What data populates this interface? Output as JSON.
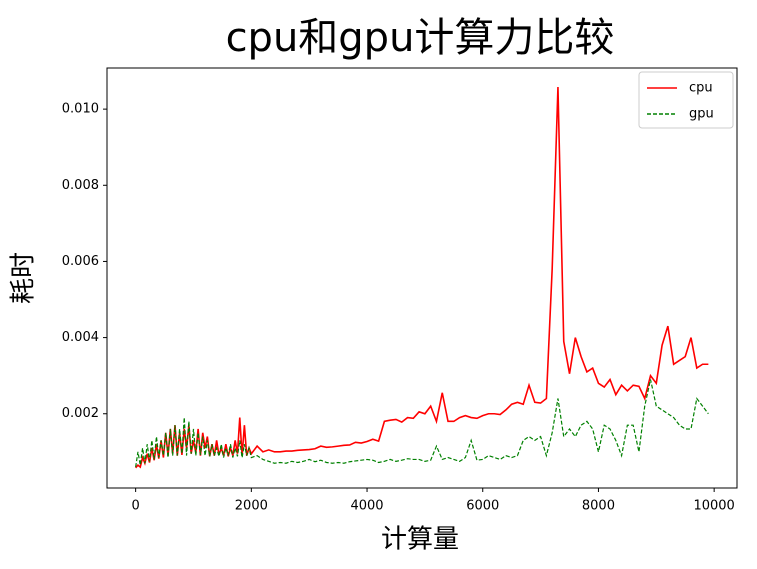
{
  "chart_data": {
    "type": "line",
    "title": "cpu和gpu计算力比较",
    "xlabel": "计算量",
    "ylabel": "耗时",
    "x": [
      0,
      40,
      80,
      120,
      160,
      200,
      240,
      280,
      320,
      360,
      400,
      440,
      480,
      520,
      560,
      600,
      640,
      680,
      720,
      760,
      800,
      840,
      880,
      920,
      960,
      1000,
      1040,
      1080,
      1120,
      1160,
      1200,
      1240,
      1280,
      1320,
      1360,
      1400,
      1440,
      1480,
      1520,
      1560,
      1600,
      1640,
      1680,
      1720,
      1760,
      1800,
      1840,
      1880,
      1920,
      1960,
      2000,
      2100,
      2200,
      2300,
      2400,
      2500,
      2600,
      2700,
      2800,
      2900,
      3000,
      3100,
      3200,
      3300,
      3400,
      3500,
      3600,
      3700,
      3800,
      3900,
      4000,
      4100,
      4200,
      4300,
      4400,
      4500,
      4600,
      4700,
      4800,
      4900,
      5000,
      5100,
      5200,
      5300,
      5400,
      5500,
      5600,
      5700,
      5800,
      5900,
      6000,
      6100,
      6200,
      6300,
      6400,
      6500,
      6600,
      6700,
      6800,
      6900,
      7000,
      7100,
      7200,
      7300,
      7400,
      7500,
      7600,
      7700,
      7800,
      7900,
      8000,
      8100,
      8200,
      8300,
      8400,
      8500,
      8600,
      8700,
      8800,
      8900,
      9000,
      9100,
      9200,
      9300,
      9400,
      9500,
      9600,
      9700,
      9800,
      9900
    ],
    "series": [
      {
        "name": "cpu",
        "color": "#ff0000",
        "linestyle": "solid",
        "values": [
          0.00058,
          0.00065,
          0.0006,
          0.00085,
          0.0007,
          0.00095,
          0.00072,
          0.0011,
          0.00078,
          0.0012,
          0.00082,
          0.0013,
          0.00085,
          0.0015,
          0.0009,
          0.0016,
          0.00095,
          0.0017,
          0.0009,
          0.0015,
          0.00092,
          0.0016,
          0.0011,
          0.0017,
          0.00095,
          0.0013,
          0.00098,
          0.0016,
          0.0009,
          0.0015,
          0.0011,
          0.0014,
          0.00088,
          0.0012,
          0.0009,
          0.0013,
          0.00092,
          0.0011,
          0.0009,
          0.0012,
          0.00088,
          0.0011,
          0.0009,
          0.0013,
          0.00095,
          0.0019,
          0.0009,
          0.0017,
          0.0009,
          0.0011,
          0.00095,
          0.00115,
          0.001,
          0.00105,
          0.001,
          0.001,
          0.00102,
          0.00102,
          0.00104,
          0.00105,
          0.00106,
          0.00108,
          0.00115,
          0.00112,
          0.00113,
          0.00115,
          0.00117,
          0.00118,
          0.00125,
          0.00123,
          0.00127,
          0.00133,
          0.00128,
          0.0018,
          0.00183,
          0.00185,
          0.00178,
          0.0019,
          0.00188,
          0.00205,
          0.002,
          0.0022,
          0.0018,
          0.00255,
          0.0018,
          0.0018,
          0.0019,
          0.00195,
          0.0019,
          0.00188,
          0.00195,
          0.002,
          0.002,
          0.00198,
          0.0021,
          0.00225,
          0.0023,
          0.00225,
          0.00275,
          0.0023,
          0.00228,
          0.0024,
          0.0058,
          0.01058,
          0.0039,
          0.00305,
          0.004,
          0.0035,
          0.0031,
          0.0032,
          0.0028,
          0.0027,
          0.0029,
          0.0025,
          0.00275,
          0.0026,
          0.00275,
          0.00272,
          0.0024,
          0.003,
          0.0028,
          0.0038,
          0.0043,
          0.0033,
          0.0034,
          0.0035,
          0.004,
          0.0032,
          0.0033,
          0.0033
        ]
      },
      {
        "name": "gpu",
        "color": "#008000",
        "linestyle": "dashed",
        "values": [
          0.0006,
          0.001,
          0.00065,
          0.0011,
          0.0007,
          0.0012,
          0.00075,
          0.0013,
          0.0008,
          0.0014,
          0.00085,
          0.0013,
          0.0009,
          0.0015,
          0.00085,
          0.0016,
          0.0009,
          0.0017,
          0.0009,
          0.0016,
          0.00095,
          0.0019,
          0.0009,
          0.0018,
          0.00095,
          0.0016,
          0.0009,
          0.0015,
          0.00092,
          0.0014,
          0.0009,
          0.0013,
          0.00088,
          0.0012,
          0.0009,
          0.0011,
          0.00088,
          0.0012,
          0.00085,
          0.0011,
          0.0009,
          0.0012,
          0.00085,
          0.0011,
          0.00088,
          0.0013,
          0.00085,
          0.0012,
          0.0009,
          0.0011,
          0.00085,
          0.0009,
          0.0008,
          0.00075,
          0.0007,
          0.00072,
          0.0007,
          0.00075,
          0.00072,
          0.00075,
          0.0008,
          0.00074,
          0.00078,
          0.00072,
          0.0007,
          0.00072,
          0.0007,
          0.00074,
          0.00076,
          0.00078,
          0.0008,
          0.00078,
          0.00072,
          0.00075,
          0.0008,
          0.00075,
          0.00078,
          0.00082,
          0.0008,
          0.0008,
          0.00075,
          0.00078,
          0.00115,
          0.0008,
          0.00085,
          0.0008,
          0.00075,
          0.00085,
          0.0013,
          0.00078,
          0.0008,
          0.0009,
          0.00085,
          0.0008,
          0.0009,
          0.00085,
          0.0009,
          0.0013,
          0.0014,
          0.0013,
          0.0014,
          0.0009,
          0.0015,
          0.0024,
          0.0014,
          0.0016,
          0.0014,
          0.0017,
          0.0018,
          0.0016,
          0.001,
          0.0017,
          0.0016,
          0.0013,
          0.0009,
          0.0017,
          0.0017,
          0.001,
          0.0022,
          0.0029,
          0.0022,
          0.0021,
          0.002,
          0.0019,
          0.0017,
          0.0016,
          0.0016,
          0.0024,
          0.0022,
          0.002
        ]
      }
    ],
    "xlim": [
      -495,
      10395
    ],
    "ylim": [
      5e-05,
      0.01108
    ],
    "xticks": [
      0,
      2000,
      4000,
      6000,
      8000,
      10000
    ],
    "yticks": [
      0.002,
      0.004,
      0.006,
      0.008,
      {
        "value": 0.01,
        "label": "0.010"
      }
    ],
    "legend": "upper right",
    "grid": false
  }
}
